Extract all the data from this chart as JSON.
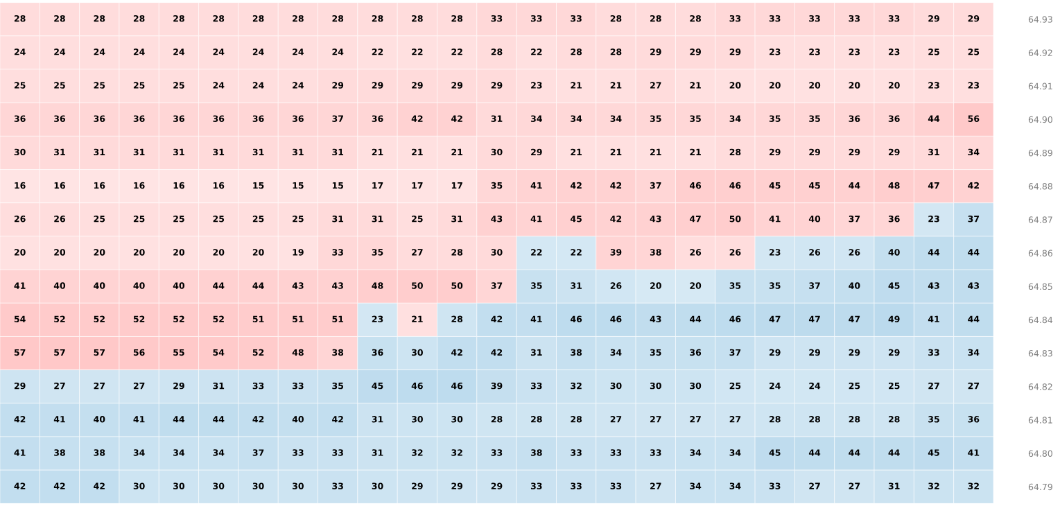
{
  "chart_data": {
    "type": "heatmap",
    "categories": [
      null,
      null,
      null,
      null,
      null,
      null,
      null,
      null,
      null,
      null,
      null,
      null,
      null,
      null,
      null,
      null,
      null,
      null,
      null,
      null,
      null,
      null,
      null,
      null,
      null
    ],
    "y_categories": [
      "64.93",
      "64.92",
      "64.91",
      "64.90",
      "64.89",
      "64.88",
      "64.87",
      "64.86",
      "64.85",
      "64.84",
      "64.83",
      "64.82",
      "64.81",
      "64.80",
      "64.79"
    ],
    "cells": [
      [
        28,
        28,
        28,
        28,
        28,
        28,
        28,
        28,
        28,
        28,
        28,
        28,
        33,
        33,
        33,
        28,
        28,
        28,
        33,
        33,
        33,
        33,
        33,
        29,
        29
      ],
      [
        24,
        24,
        24,
        24,
        24,
        24,
        24,
        24,
        24,
        22,
        22,
        22,
        28,
        22,
        28,
        28,
        29,
        29,
        29,
        23,
        23,
        23,
        23,
        25,
        25
      ],
      [
        25,
        25,
        25,
        25,
        25,
        24,
        24,
        24,
        29,
        29,
        29,
        29,
        29,
        23,
        21,
        21,
        27,
        21,
        20,
        20,
        20,
        20,
        20,
        23,
        23
      ],
      [
        36,
        36,
        36,
        36,
        36,
        36,
        36,
        36,
        37,
        36,
        42,
        42,
        31,
        34,
        34,
        34,
        35,
        35,
        34,
        35,
        35,
        36,
        36,
        44,
        56
      ],
      [
        30,
        31,
        31,
        31,
        31,
        31,
        31,
        31,
        31,
        21,
        21,
        21,
        30,
        29,
        21,
        21,
        21,
        21,
        28,
        29,
        29,
        29,
        29,
        31,
        34
      ],
      [
        16,
        16,
        16,
        16,
        16,
        16,
        15,
        15,
        15,
        17,
        17,
        17,
        35,
        41,
        42,
        42,
        37,
        46,
        46,
        45,
        45,
        44,
        48,
        47,
        42
      ],
      [
        26,
        26,
        25,
        25,
        25,
        25,
        25,
        25,
        31,
        31,
        25,
        31,
        43,
        41,
        45,
        42,
        43,
        47,
        50,
        41,
        40,
        37,
        36,
        23,
        37
      ],
      [
        20,
        20,
        20,
        20,
        20,
        20,
        20,
        19,
        33,
        35,
        27,
        28,
        30,
        22,
        22,
        39,
        38,
        26,
        26,
        23,
        26,
        26,
        40,
        44,
        44
      ],
      [
        41,
        40,
        40,
        40,
        40,
        44,
        44,
        43,
        43,
        48,
        50,
        50,
        37,
        35,
        31,
        26,
        20,
        20,
        35,
        35,
        37,
        40,
        45,
        43,
        43
      ],
      [
        54,
        52,
        52,
        52,
        52,
        52,
        51,
        51,
        51,
        23,
        21,
        28,
        42,
        41,
        46,
        46,
        43,
        44,
        46,
        47,
        47,
        47,
        49,
        41,
        44
      ],
      [
        57,
        57,
        57,
        56,
        55,
        54,
        52,
        48,
        38,
        36,
        30,
        42,
        42,
        31,
        38,
        34,
        35,
        36,
        37,
        29,
        29,
        29,
        29,
        33,
        34
      ],
      [
        29,
        27,
        27,
        27,
        29,
        31,
        33,
        33,
        35,
        45,
        46,
        46,
        39,
        33,
        32,
        30,
        30,
        30,
        25,
        24,
        24,
        25,
        25,
        27,
        27
      ],
      [
        42,
        41,
        40,
        41,
        44,
        44,
        42,
        40,
        42,
        31,
        30,
        30,
        28,
        28,
        28,
        27,
        27,
        27,
        27,
        28,
        28,
        28,
        28,
        35,
        36
      ],
      [
        41,
        38,
        38,
        34,
        34,
        34,
        37,
        33,
        33,
        31,
        32,
        32,
        33,
        38,
        33,
        33,
        33,
        34,
        34,
        45,
        44,
        44,
        44,
        45,
        41
      ],
      [
        42,
        42,
        42,
        30,
        30,
        30,
        30,
        30,
        33,
        30,
        29,
        29,
        29,
        33,
        33,
        33,
        27,
        34,
        34,
        33,
        27,
        27,
        31,
        32,
        32
      ]
    ],
    "colors": [
      [
        "#ffc8c8",
        "#ffc8c8",
        "#ffc8c8",
        "#ffc8c8",
        "#ffc8c8",
        "#ffc8c8",
        "#ffc8c8",
        "#ffc8c8",
        "#ffc8c8",
        "#ffc8c8",
        "#ffc8c8",
        "#ffc8c8",
        "#ffc8c8",
        "#ffc8c8",
        "#ffc8c8",
        "#ffc8c8",
        "#ffc8c8",
        "#ffc8c8",
        "#ffc8c8",
        "#ffc8c8",
        "#ffc8c8",
        "#ffc8c8",
        "#ffc8c8",
        "#ffc8c8",
        "#ffc8c8"
      ],
      [
        "#ffc8c8",
        "#ffc8c8",
        "#ffc8c8",
        "#ffc8c8",
        "#ffc8c8",
        "#ffc8c8",
        "#ffc8c8",
        "#ffc8c8",
        "#ffc8c8",
        "#ffc8c8",
        "#ffc8c8",
        "#ffc8c8",
        "#ffc8c8",
        "#ffc8c8",
        "#ffc8c8",
        "#ffc8c8",
        "#ffc8c8",
        "#ffc8c8",
        "#ffc8c8",
        "#ffc8c8",
        "#ffc8c8",
        "#ffc8c8",
        "#ffc8c8",
        "#ffc8c8",
        "#ffc8c8"
      ],
      [
        "#ffc8c8",
        "#ffc8c8",
        "#ffc8c8",
        "#ffc8c8",
        "#ffc8c8",
        "#ffc8c8",
        "#ffc8c8",
        "#ffc8c8",
        "#ffc8c8",
        "#ffc8c8",
        "#ffc8c8",
        "#ffc8c8",
        "#ffc8c8",
        "#ffc8c8",
        "#ffc8c8",
        "#ffc8c8",
        "#ffc8c8",
        "#ffc8c8",
        "#ffc8c8",
        "#ffc8c8",
        "#ffc8c8",
        "#ffc8c8",
        "#ffc8c8",
        "#ffc8c8",
        "#ffc8c8"
      ],
      [
        "#ffc8c8",
        "#ffc8c8",
        "#ffc8c8",
        "#ffc8c8",
        "#ffc8c8",
        "#ffc8c8",
        "#ffc8c8",
        "#ffc8c8",
        "#ffc8c8",
        "#ffc8c8",
        "#ffc8c8",
        "#ffc8c8",
        "#ffc8c8",
        "#ffc8c8",
        "#ffc8c8",
        "#ffc8c8",
        "#ffc8c8",
        "#ffc8c8",
        "#ffc8c8",
        "#ffc8c8",
        "#ffc8c8",
        "#ffc8c8",
        "#ffc8c8",
        "#ffc8c8",
        "#ffc8c8"
      ],
      [
        "#ffc8c8",
        "#ffc8c8",
        "#ffc8c8",
        "#ffc8c8",
        "#ffc8c8",
        "#ffc8c8",
        "#ffc8c8",
        "#ffc8c8",
        "#ffc8c8",
        "#ffc8c8",
        "#ffc8c8",
        "#ffc8c8",
        "#ffc8c8",
        "#ffc8c8",
        "#ffc8c8",
        "#ffc8c8",
        "#ffc8c8",
        "#ffc8c8",
        "#ffc8c8",
        "#ffc8c8",
        "#ffc8c8",
        "#ffc8c8",
        "#ffc8c8",
        "#ffc8c8",
        "#ffc8c8"
      ],
      [
        "#ffc8c8",
        "#ffc8c8",
        "#ffc8c8",
        "#ffc8c8",
        "#ffc8c8",
        "#ffc8c8",
        "#ffc8c8",
        "#ffc8c8",
        "#ffc8c8",
        "#ffc8c8",
        "#ffc8c8",
        "#ffc8c8",
        "#ffc8c8",
        "#ffc8c8",
        "#ffc8c8",
        "#ffc8c8",
        "#ffc8c8",
        "#ffc8c8",
        "#ffc8c8",
        "#ffc8c8",
        "#ffc8c8",
        "#ffc8c8",
        "#ffc8c8",
        "#ffc8c8",
        "#ffc8c8"
      ],
      [
        "#ffc8c8",
        "#ffc8c8",
        "#ffc8c8",
        "#ffc8c8",
        "#ffc8c8",
        "#ffc8c8",
        "#ffc8c8",
        "#ffc8c8",
        "#ffc8c8",
        "#ffc8c8",
        "#ffc8c8",
        "#ffc8c8",
        "#ffc8c8",
        "#ffc8c8",
        "#ffc8c8",
        "#ffc8c8",
        "#ffc8c8",
        "#ffc8c8",
        "#ffc8c8",
        "#ffc8c8",
        "#ffc8c8",
        "#ffc8c8",
        "#ffc8c8",
        "#b4d6eb",
        "#b4d6eb"
      ],
      [
        "#ffc8c8",
        "#ffc8c8",
        "#ffc8c8",
        "#ffc8c8",
        "#ffc8c8",
        "#ffc8c8",
        "#ffc8c8",
        "#ffc8c8",
        "#ffc8c8",
        "#ffc8c8",
        "#ffc8c8",
        "#ffc8c8",
        "#ffc8c8",
        "#b4d6eb",
        "#b4d6eb",
        "#ffc8c8",
        "#ffc8c8",
        "#ffc8c8",
        "#ffc8c8",
        "#b4d6eb",
        "#b4d6eb",
        "#b4d6eb",
        "#b4d6eb",
        "#b4d6eb",
        "#b4d6eb"
      ],
      [
        "#ffc8c8",
        "#ffc8c8",
        "#ffc8c8",
        "#ffc8c8",
        "#ffc8c8",
        "#ffc8c8",
        "#ffc8c8",
        "#ffc8c8",
        "#ffc8c8",
        "#ffc8c8",
        "#ffc8c8",
        "#ffc8c8",
        "#ffc8c8",
        "#b4d6eb",
        "#b4d6eb",
        "#b4d6eb",
        "#b4d6eb",
        "#b4d6eb",
        "#b4d6eb",
        "#b4d6eb",
        "#b4d6eb",
        "#b4d6eb",
        "#b4d6eb",
        "#b4d6eb",
        "#b4d6eb"
      ],
      [
        "#ffc8c8",
        "#ffc8c8",
        "#ffc8c8",
        "#ffc8c8",
        "#ffc8c8",
        "#ffc8c8",
        "#ffc8c8",
        "#ffc8c8",
        "#ffc8c8",
        "#b4d6eb",
        "#ffc8c8",
        "#b4d6eb",
        "#b4d6eb",
        "#b4d6eb",
        "#b4d6eb",
        "#b4d6eb",
        "#b4d6eb",
        "#b4d6eb",
        "#b4d6eb",
        "#b4d6eb",
        "#b4d6eb",
        "#b4d6eb",
        "#b4d6eb",
        "#b4d6eb",
        "#b4d6eb"
      ],
      [
        "#ffc8c8",
        "#ffc8c8",
        "#ffc8c8",
        "#ffc8c8",
        "#ffc8c8",
        "#ffc8c8",
        "#ffc8c8",
        "#ffc8c8",
        "#ffc8c8",
        "#b4d6eb",
        "#b4d6eb",
        "#b4d6eb",
        "#b4d6eb",
        "#b4d6eb",
        "#b4d6eb",
        "#b4d6eb",
        "#b4d6eb",
        "#b4d6eb",
        "#b4d6eb",
        "#b4d6eb",
        "#b4d6eb",
        "#b4d6eb",
        "#b4d6eb",
        "#b4d6eb",
        "#b4d6eb"
      ],
      [
        "#b4d6eb",
        "#b4d6eb",
        "#b4d6eb",
        "#b4d6eb",
        "#b4d6eb",
        "#b4d6eb",
        "#b4d6eb",
        "#b4d6eb",
        "#b4d6eb",
        "#b4d6eb",
        "#b4d6eb",
        "#b4d6eb",
        "#b4d6eb",
        "#b4d6eb",
        "#b4d6eb",
        "#b4d6eb",
        "#b4d6eb",
        "#b4d6eb",
        "#b4d6eb",
        "#b4d6eb",
        "#b4d6eb",
        "#b4d6eb",
        "#b4d6eb",
        "#b4d6eb",
        "#b4d6eb"
      ],
      [
        "#b4d6eb",
        "#b4d6eb",
        "#b4d6eb",
        "#b4d6eb",
        "#b4d6eb",
        "#b4d6eb",
        "#b4d6eb",
        "#b4d6eb",
        "#b4d6eb",
        "#b4d6eb",
        "#b4d6eb",
        "#b4d6eb",
        "#b4d6eb",
        "#b4d6eb",
        "#b4d6eb",
        "#b4d6eb",
        "#b4d6eb",
        "#b4d6eb",
        "#b4d6eb",
        "#b4d6eb",
        "#b4d6eb",
        "#b4d6eb",
        "#b4d6eb",
        "#b4d6eb",
        "#b4d6eb"
      ],
      [
        "#b4d6eb",
        "#b4d6eb",
        "#b4d6eb",
        "#b4d6eb",
        "#b4d6eb",
        "#b4d6eb",
        "#b4d6eb",
        "#b4d6eb",
        "#b4d6eb",
        "#b4d6eb",
        "#b4d6eb",
        "#b4d6eb",
        "#b4d6eb",
        "#b4d6eb",
        "#b4d6eb",
        "#b4d6eb",
        "#b4d6eb",
        "#b4d6eb",
        "#b4d6eb",
        "#b4d6eb",
        "#b4d6eb",
        "#b4d6eb",
        "#b4d6eb",
        "#b4d6eb",
        "#b4d6eb"
      ],
      [
        "#b4d6eb",
        "#b4d6eb",
        "#b4d6eb",
        "#b4d6eb",
        "#b4d6eb",
        "#b4d6eb",
        "#b4d6eb",
        "#b4d6eb",
        "#b4d6eb",
        "#b4d6eb",
        "#b4d6eb",
        "#b4d6eb",
        "#b4d6eb",
        "#b4d6eb",
        "#b4d6eb",
        "#b4d6eb",
        "#b4d6eb",
        "#b4d6eb",
        "#b4d6eb",
        "#b4d6eb",
        "#b4d6eb",
        "#b4d6eb",
        "#b4d6eb",
        "#b4d6eb",
        "#b4d6eb"
      ]
    ],
    "cell_labels": [
      [
        "28",
        "28",
        "28",
        "28",
        "28",
        "28",
        "28",
        "28",
        "28",
        "28",
        "28",
        "28",
        "33",
        "33",
        "33",
        "28",
        "28",
        "28",
        "33",
        "33",
        "33",
        "33",
        "33",
        "29",
        "29"
      ],
      [
        "24",
        "24",
        "24",
        "24",
        "24",
        "24",
        "24",
        "24",
        "24",
        "22",
        "22",
        "22",
        "28",
        "22",
        "28",
        "28",
        "29",
        "29",
        "29",
        "23",
        "23",
        "23",
        "23",
        "25",
        "25"
      ],
      [
        "25",
        "25",
        "25",
        "25",
        "25",
        "24",
        "24",
        "24",
        "29",
        "29",
        "29",
        "29",
        "29",
        "23",
        "21",
        "21",
        "27",
        "21",
        "20",
        "20",
        "20",
        "20",
        "20",
        "23",
        "23"
      ],
      [
        "36",
        "36",
        "36",
        "36",
        "36",
        "36",
        "36",
        "36",
        "37",
        "36",
        "42",
        "42",
        "31",
        "34",
        "34",
        "34",
        "35",
        "35",
        "34",
        "35",
        "35",
        "36",
        "36",
        "44",
        "56"
      ],
      [
        "30",
        "31",
        "31",
        "31",
        "31",
        "31",
        "31",
        "31",
        "31",
        "21",
        "21",
        "21",
        "30",
        "29",
        "21",
        "21",
        "21",
        "21",
        "28",
        "29",
        "29",
        "29",
        "29",
        "31",
        "34"
      ],
      [
        "16",
        "16",
        "16",
        "16",
        "16",
        "16",
        "15",
        "15",
        "15",
        "17",
        "17",
        "17",
        "35",
        "41",
        "42",
        "42",
        "37",
        "46",
        "46",
        "45",
        "45",
        "44",
        "48",
        "47",
        "42"
      ],
      [
        "26",
        "26",
        "25",
        "25",
        "25",
        "25",
        "25",
        "25",
        "31",
        "31",
        "25",
        "31",
        "43",
        "41",
        "45",
        "42",
        "43",
        "47",
        "50",
        "41",
        "40",
        "37",
        "36",
        "23",
        "37"
      ],
      [
        "20",
        "20",
        "20",
        "20",
        "20",
        "20",
        "20",
        "19",
        "33",
        "35",
        "27",
        "28",
        "30",
        "22",
        "22",
        "39",
        "38",
        "26",
        "26",
        "23",
        "26",
        "26",
        "40",
        "44",
        "44"
      ],
      [
        "41",
        "40",
        "40",
        "40",
        "40",
        "44",
        "44",
        "43",
        "43",
        "48",
        "50",
        "50",
        "37",
        "35",
        "31",
        "26",
        "20",
        "20",
        "35",
        "35",
        "37",
        "40",
        "45",
        "43",
        "43"
      ],
      [
        "54",
        "52",
        "52",
        "52",
        "52",
        "52",
        "51",
        "51",
        "51",
        "23",
        "21",
        "28",
        "42",
        "41",
        "46",
        "46",
        "43",
        "44",
        "46",
        "47",
        "47",
        "47",
        "49",
        "41",
        "44"
      ],
      [
        "57",
        "57",
        "57",
        "56",
        "55",
        "54",
        "52",
        "48",
        "38",
        "36",
        "30",
        "42",
        "42",
        "31",
        "38",
        "34",
        "35",
        "36",
        "37",
        "29",
        "29",
        "29",
        "29",
        "33",
        "34"
      ],
      [
        "29",
        "27",
        "27",
        "27",
        "29",
        "31",
        "33",
        "33",
        "35",
        "45",
        "46",
        "46",
        "39",
        "33",
        "32",
        "30",
        "30",
        "30",
        "25",
        "24",
        "24",
        "25",
        "25",
        "27",
        "27"
      ],
      [
        "42",
        "41",
        "40",
        "41",
        "44",
        "44",
        "42",
        "40",
        "42",
        "31",
        "30",
        "30",
        "28",
        "28",
        "28",
        "27",
        "27",
        "27",
        "27",
        "28",
        "28",
        "28",
        "28",
        "35",
        "36"
      ],
      [
        "41",
        "38",
        "38",
        "34",
        "34",
        "34",
        "37",
        "33",
        "33",
        "31",
        "32",
        "32",
        "33",
        "38",
        "33",
        "33",
        "33",
        "34",
        "34",
        "45",
        "44",
        "44",
        "44",
        "45",
        "41"
      ],
      [
        "42",
        "42",
        "42",
        "30",
        "30",
        "30",
        "30",
        "30",
        "33",
        "30",
        "29",
        "29",
        "29",
        "33",
        "33",
        "33",
        "27",
        "34",
        "34",
        "33",
        "27",
        "27",
        "31",
        "32",
        "32"
      ]
    ]
  }
}
